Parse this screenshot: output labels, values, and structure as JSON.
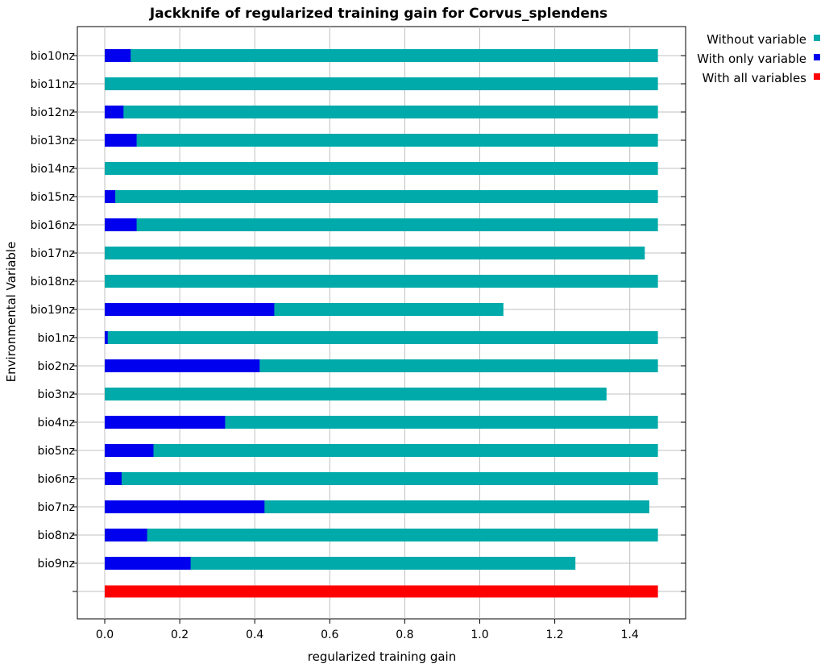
{
  "chart_data": {
    "type": "bar",
    "orientation": "horizontal",
    "title": "Jackknife of regularized training gain for Corvus_splendens",
    "xlabel": "regularized training gain",
    "ylabel": "Environmental Variable",
    "xlim": [
      -0.07,
      1.55
    ],
    "xticks": [
      0.0,
      0.2,
      0.4,
      0.6,
      0.8,
      1.0,
      1.2,
      1.4
    ],
    "xtick_labels": [
      "0.0",
      "0.2",
      "0.4",
      "0.6",
      "0.8",
      "1.0",
      "1.2",
      "1.4"
    ],
    "grid": true,
    "legend_position": "top-right",
    "categories": [
      "bio10nz",
      "bio11nz",
      "bio12nz",
      "bio13nz",
      "bio14nz",
      "bio15nz",
      "bio16nz",
      "bio17nz",
      "bio18nz",
      "bio19nz",
      "bio1nz",
      "bio2nz",
      "bio3nz",
      "bio4nz",
      "bio5nz",
      "bio6nz",
      "bio7nz",
      "bio8nz",
      "bio9nz"
    ],
    "series": [
      {
        "name": "Without variable",
        "color": "#00aaaa",
        "values": [
          1.475,
          1.475,
          1.475,
          1.475,
          1.475,
          1.475,
          1.475,
          1.44,
          1.475,
          1.063,
          1.475,
          1.475,
          1.338,
          1.475,
          1.475,
          1.475,
          1.452,
          1.475,
          1.255
        ]
      },
      {
        "name": "With only variable",
        "color": "#0000ee",
        "values": [
          0.069,
          0.0,
          0.05,
          0.085,
          0.0,
          0.028,
          0.085,
          0.0,
          0.0,
          0.452,
          0.008,
          0.413,
          0.0,
          0.321,
          0.13,
          0.045,
          0.426,
          0.113,
          0.229
        ]
      }
    ],
    "all_variables": {
      "name": "With all variables",
      "color": "#ff0000",
      "value": 1.475
    }
  }
}
